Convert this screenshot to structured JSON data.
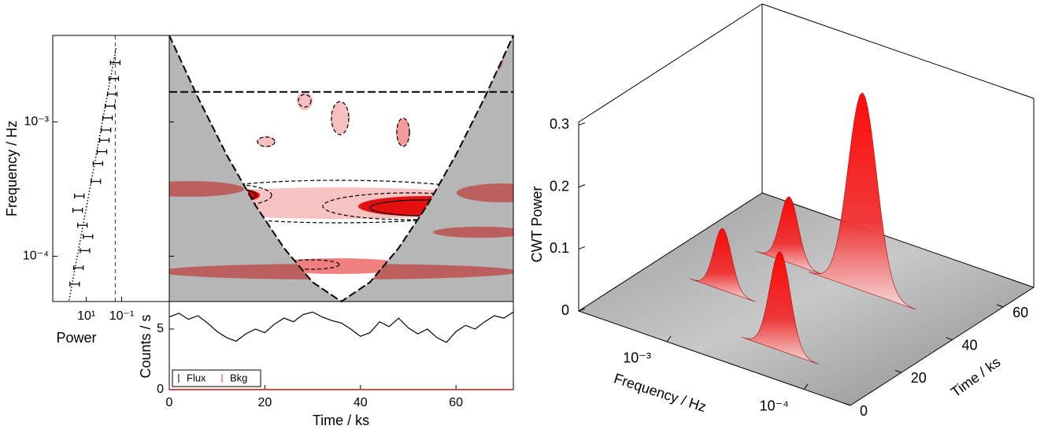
{
  "chart_data": [
    {
      "type": "spectrum",
      "xlabel": "Power",
      "ylabel": "Frequency / Hz",
      "xscale": "log",
      "yscale": "log",
      "xlim": [
        800,
        0.0002
      ],
      "xticks": [
        {
          "value": 10,
          "label": "10¹"
        },
        {
          "value": 0.1,
          "label": "10⁻¹"
        }
      ],
      "ylim": [
        4.6e-05,
        0.0044
      ],
      "yticks": [
        {
          "value": 0.001,
          "label": "10⁻³"
        },
        {
          "value": 0.0001,
          "label": "10⁻⁴"
        }
      ],
      "points": {
        "x": [
          46,
          28,
          12,
          8.1,
          16.7,
          31,
          25,
          2.9,
          2.2,
          1.3,
          0.95,
          0.77,
          0.63,
          0.46,
          0.34,
          0.28,
          0.23
        ],
        "y": [
          6.2e-05,
          8.2e-05,
          0.00011,
          0.00014,
          0.00017,
          0.00022,
          0.00028,
          0.00036,
          0.00049,
          0.0006,
          0.00073,
          0.00087,
          0.00107,
          0.00131,
          0.00161,
          0.0021,
          0.00276
        ]
      },
      "fit": {
        "x": [
          95,
          0.2
        ],
        "y": [
          4.7e-05,
          0.0036
        ]
      },
      "significance": 0.23,
      "color": "#000000"
    },
    {
      "type": "wavelet",
      "xlim": [
        0,
        72
      ],
      "ylim": [
        4.6e-05,
        0.0044
      ],
      "yscale": "log",
      "coi": {
        "x": [
          0,
          6,
          12,
          18,
          24,
          30,
          36,
          42,
          48,
          54,
          60,
          66,
          72
        ],
        "y": [
          0.0044,
          0.00152,
          0.00057,
          0.00024,
          0.000115,
          6.4e-05,
          4.6e-05,
          6.4e-05,
          0.000115,
          0.00024,
          0.00057,
          0.00152,
          0.0044
        ]
      },
      "cutoff": 0.00167
    },
    {
      "type": "line",
      "xlabel": "Time / ks",
      "ylabel": "Counts / s",
      "xlim": [
        0,
        72
      ],
      "ylim": [
        0,
        7.27
      ],
      "xticks": [
        0,
        20,
        40,
        60
      ],
      "yticks": [
        0,
        5
      ],
      "legend": "lower left",
      "series": [
        {
          "name": "Flux",
          "color": "#000000",
          "x": [
            0,
            2,
            4,
            6,
            8,
            10,
            12,
            14,
            16,
            18,
            20,
            22,
            24,
            26,
            28,
            30,
            32,
            34,
            36,
            38,
            40,
            42,
            44,
            46,
            48,
            50,
            52,
            54,
            56,
            58,
            60,
            62,
            64,
            66,
            68,
            70,
            72
          ],
          "values": [
            6.0,
            6.3,
            5.8,
            6.1,
            5.5,
            4.8,
            4.3,
            4.0,
            4.6,
            5.0,
            4.7,
            5.4,
            5.9,
            5.6,
            6.2,
            6.4,
            6.0,
            5.7,
            5.5,
            5.0,
            4.4,
            4.7,
            5.6,
            5.2,
            5.9,
            5.1,
            4.6,
            5.0,
            4.3,
            3.9,
            4.8,
            5.3,
            5.0,
            5.6,
            6.1,
            5.9,
            6.4
          ]
        },
        {
          "name": "Bkg",
          "color": "#e03030",
          "x": [
            0,
            72
          ],
          "values": [
            0.03,
            0.03
          ]
        }
      ]
    },
    {
      "type": "surface3d",
      "zlabel": "CWT Power",
      "xlabel": "Frequency / Hz",
      "ylabel": "Time / ks",
      "xlim": [
        0.0044,
        4.6e-05
      ],
      "xticks": [
        {
          "value": 0.001,
          "label": "10⁻³"
        },
        {
          "value": 0.0001,
          "label": "10⁻⁴"
        }
      ],
      "ylim": [
        0,
        72
      ],
      "yticks": [
        0,
        20,
        40,
        60
      ],
      "zlim": [
        0,
        0.305
      ],
      "zticks": [
        0,
        0.1,
        0.2,
        0.3
      ],
      "peaks": {
        "time": [
          47,
          12,
          28,
          48
        ],
        "frequency": [
          0.00028,
          0.00025,
          0.0013,
          0.001
        ],
        "values": [
          0.32,
          0.16,
          0.1,
          0.107
        ]
      },
      "color": "#ff1010"
    }
  ]
}
